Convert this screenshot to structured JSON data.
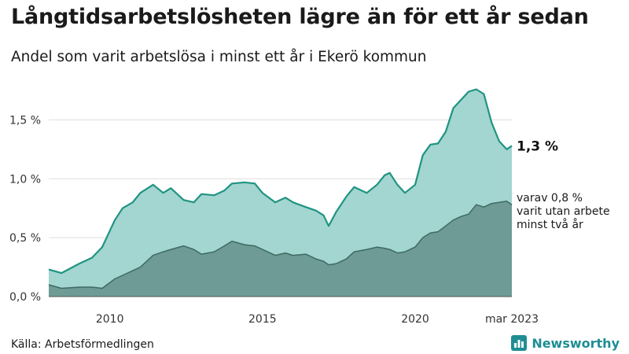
{
  "title": "Långtidsarbetslösheten lägre än för ett år sedan",
  "subtitle": "Andel som varit arbetslösa i minst ett år i Ekerö kommun",
  "source": "Källa: Arbetsförmedlingen",
  "brand": "Newsworthy",
  "colors": {
    "total_line": "#1f9481",
    "total_fill": "#a3d5d1",
    "sub_line": "#3e6a63",
    "sub_fill": "#6f9b96",
    "grid": "#dddddd",
    "brand": "#1e8e93"
  },
  "chart_data": {
    "type": "area",
    "title": "Långtidsarbetslösheten lägre än för ett år sedan",
    "subtitle": "Andel som varit arbetslösa i minst ett år i Ekerö kommun",
    "xlim": [
      "2008-01",
      "2023-03"
    ],
    "ylim": [
      0,
      1.85
    ],
    "y_ticks": [
      {
        "value": 0,
        "label": "0,0 %"
      },
      {
        "value": 0.5,
        "label": "0,5 %"
      },
      {
        "value": 1.0,
        "label": "1,0 %"
      },
      {
        "value": 1.5,
        "label": "1,5 %"
      }
    ],
    "x_ticks": [
      {
        "value": "2010-01",
        "label": "2010"
      },
      {
        "value": "2015-01",
        "label": "2015"
      },
      {
        "value": "2020-01",
        "label": "2020"
      },
      {
        "value": "2023-03",
        "label": "mar 2023"
      }
    ],
    "grid": "horizontal",
    "series": [
      {
        "key": "total",
        "end_label": "1,3 %",
        "points": [
          [
            "2008-01",
            0.23
          ],
          [
            "2008-06",
            0.2
          ],
          [
            "2009-01",
            0.28
          ],
          [
            "2009-06",
            0.33
          ],
          [
            "2009-10",
            0.42
          ],
          [
            "2010-03",
            0.65
          ],
          [
            "2010-06",
            0.75
          ],
          [
            "2010-10",
            0.8
          ],
          [
            "2011-01",
            0.88
          ],
          [
            "2011-06",
            0.95
          ],
          [
            "2011-10",
            0.88
          ],
          [
            "2012-01",
            0.92
          ],
          [
            "2012-06",
            0.82
          ],
          [
            "2012-10",
            0.8
          ],
          [
            "2013-01",
            0.87
          ],
          [
            "2013-06",
            0.86
          ],
          [
            "2013-10",
            0.9
          ],
          [
            "2014-01",
            0.96
          ],
          [
            "2014-06",
            0.97
          ],
          [
            "2014-10",
            0.96
          ],
          [
            "2015-01",
            0.88
          ],
          [
            "2015-06",
            0.8
          ],
          [
            "2015-10",
            0.84
          ],
          [
            "2016-01",
            0.8
          ],
          [
            "2016-06",
            0.76
          ],
          [
            "2016-10",
            0.73
          ],
          [
            "2017-01",
            0.69
          ],
          [
            "2017-03",
            0.6
          ],
          [
            "2017-06",
            0.72
          ],
          [
            "2017-10",
            0.85
          ],
          [
            "2018-01",
            0.93
          ],
          [
            "2018-06",
            0.88
          ],
          [
            "2018-10",
            0.95
          ],
          [
            "2019-01",
            1.03
          ],
          [
            "2019-03",
            1.05
          ],
          [
            "2019-06",
            0.95
          ],
          [
            "2019-09",
            0.88
          ],
          [
            "2020-01",
            0.95
          ],
          [
            "2020-04",
            1.2
          ],
          [
            "2020-07",
            1.29
          ],
          [
            "2020-10",
            1.3
          ],
          [
            "2021-01",
            1.4
          ],
          [
            "2021-04",
            1.6
          ],
          [
            "2021-07",
            1.67
          ],
          [
            "2021-10",
            1.74
          ],
          [
            "2022-01",
            1.76
          ],
          [
            "2022-04",
            1.72
          ],
          [
            "2022-07",
            1.48
          ],
          [
            "2022-10",
            1.32
          ],
          [
            "2023-01",
            1.25
          ],
          [
            "2023-03",
            1.28
          ]
        ]
      },
      {
        "key": "varav",
        "name": "varav 0,8 % varit utan arbete minst två år",
        "label_lines": [
          "varav 0,8 %",
          "varit utan arbete",
          "minst två år"
        ],
        "points": [
          [
            "2008-01",
            0.1
          ],
          [
            "2008-06",
            0.07
          ],
          [
            "2009-01",
            0.08
          ],
          [
            "2009-06",
            0.08
          ],
          [
            "2009-10",
            0.07
          ],
          [
            "2010-03",
            0.15
          ],
          [
            "2010-06",
            0.18
          ],
          [
            "2010-10",
            0.22
          ],
          [
            "2011-01",
            0.25
          ],
          [
            "2011-06",
            0.35
          ],
          [
            "2011-10",
            0.38
          ],
          [
            "2012-01",
            0.4
          ],
          [
            "2012-06",
            0.43
          ],
          [
            "2012-10",
            0.4
          ],
          [
            "2013-01",
            0.36
          ],
          [
            "2013-06",
            0.38
          ],
          [
            "2013-10",
            0.43
          ],
          [
            "2014-01",
            0.47
          ],
          [
            "2014-06",
            0.44
          ],
          [
            "2014-10",
            0.43
          ],
          [
            "2015-01",
            0.4
          ],
          [
            "2015-06",
            0.35
          ],
          [
            "2015-10",
            0.37
          ],
          [
            "2016-01",
            0.35
          ],
          [
            "2016-06",
            0.36
          ],
          [
            "2016-10",
            0.32
          ],
          [
            "2017-01",
            0.3
          ],
          [
            "2017-03",
            0.27
          ],
          [
            "2017-06",
            0.28
          ],
          [
            "2017-10",
            0.32
          ],
          [
            "2018-01",
            0.38
          ],
          [
            "2018-06",
            0.4
          ],
          [
            "2018-10",
            0.42
          ],
          [
            "2019-01",
            0.41
          ],
          [
            "2019-03",
            0.4
          ],
          [
            "2019-06",
            0.37
          ],
          [
            "2019-09",
            0.38
          ],
          [
            "2020-01",
            0.42
          ],
          [
            "2020-04",
            0.5
          ],
          [
            "2020-07",
            0.54
          ],
          [
            "2020-10",
            0.55
          ],
          [
            "2021-01",
            0.6
          ],
          [
            "2021-04",
            0.65
          ],
          [
            "2021-07",
            0.68
          ],
          [
            "2021-10",
            0.7
          ],
          [
            "2022-01",
            0.78
          ],
          [
            "2022-04",
            0.76
          ],
          [
            "2022-07",
            0.79
          ],
          [
            "2022-10",
            0.8
          ],
          [
            "2023-01",
            0.81
          ],
          [
            "2023-03",
            0.78
          ]
        ]
      }
    ]
  }
}
